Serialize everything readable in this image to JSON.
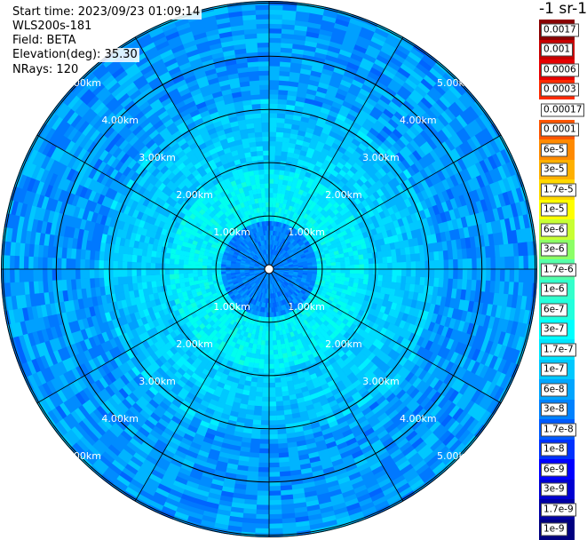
{
  "info": {
    "start_time": "Start time: 2023/09/23 01:09:14",
    "instrument": "WLS200s-181",
    "field": "Field: BETA",
    "elevation": "Elevation(deg): 35.30",
    "nrays": "NRays: 120"
  },
  "legend": {
    "units": "-1 sr-1",
    "levels": [
      "0.0017",
      "0.001",
      "0.0006",
      "0.0003",
      "0.00017",
      "0.0001",
      "6e-5",
      "3e-5",
      "1.7e-5",
      "1e-5",
      "6e-6",
      "3e-6",
      "1.7e-6",
      "1e-6",
      "6e-7",
      "3e-7",
      "1.7e-7",
      "1e-7",
      "6e-8",
      "3e-8",
      "1.7e-8",
      "1e-8",
      "6e-9",
      "3e-9",
      "1.7e-9",
      "1e-9"
    ],
    "colors": [
      "#8b0000",
      "#c80000",
      "#e60000",
      "#ff2a00",
      "#ffffff",
      "#ff5500",
      "#ff8a00",
      "#ffb000",
      "#ffd800",
      "#ffff00",
      "#c8ff33",
      "#8cff66",
      "#55ffaa",
      "#33ffcc",
      "#22ffdd",
      "#00ffff",
      "#00e5ff",
      "#00c8ff",
      "#00a5ff",
      "#0082ff",
      "#005aff",
      "#0032ff",
      "#0000ff",
      "#0000d2",
      "#0000a5",
      "#000080"
    ]
  },
  "chart_data": {
    "type": "heatmap",
    "projection": "polar-ppi",
    "range_rings_km": [
      1,
      2,
      3,
      4,
      5
    ],
    "range_labels": [
      "1.00km",
      "2.00km",
      "3.00km",
      "4.00km",
      "5.00km"
    ],
    "max_range_km": 5.0,
    "spokes_deg": [
      0,
      30,
      60,
      90,
      120,
      150,
      180,
      210,
      240,
      270,
      300,
      330
    ],
    "nrays": 120,
    "grid": true
  }
}
